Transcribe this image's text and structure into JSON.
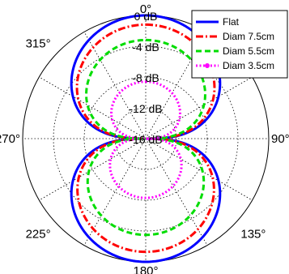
{
  "chart_data": {
    "type": "polar-line",
    "angle_labels": [
      {
        "deg": 0,
        "label": "0°"
      },
      {
        "deg": 90,
        "label": "90°"
      },
      {
        "deg": 135,
        "label": "135°"
      },
      {
        "deg": 180,
        "label": "180°"
      },
      {
        "deg": 225,
        "label": "225°"
      },
      {
        "deg": 270,
        "label": "270°"
      },
      {
        "deg": 315,
        "label": "315°"
      }
    ],
    "radial_labels": [
      {
        "value": 0,
        "label": "0 dB"
      },
      {
        "value": -4,
        "label": "-4 dB"
      },
      {
        "value": -8,
        "label": "-8 dB"
      },
      {
        "value": -12,
        "label": "-12 dB"
      },
      {
        "value": -16,
        "label": "-16 dB"
      }
    ],
    "rlim": [
      -16,
      0
    ],
    "grid": true,
    "legend_position": "top-right",
    "series": [
      {
        "name": "Flat",
        "color": "#0000ff",
        "style": "solid",
        "marker": "none",
        "front_peak_db": 0,
        "back_peak_db": 0,
        "null_db": -16
      },
      {
        "name": "Diam 7.5cm",
        "color": "#ff0000",
        "style": "dashdot",
        "marker": "none",
        "front_peak_db": -1.2,
        "back_peak_db": -1.3,
        "null_db": -16
      },
      {
        "name": "Diam 5.5cm",
        "color": "#00dd00",
        "style": "dashed",
        "marker": "none",
        "front_peak_db": -3.2,
        "back_peak_db": -3.5,
        "null_db": -16
      },
      {
        "name": "Diam 3.5cm",
        "color": "#ff00ff",
        "style": "dotted",
        "marker": "point",
        "front_peak_db": -8.6,
        "back_peak_db": -8.3,
        "null_db": -16
      }
    ]
  }
}
